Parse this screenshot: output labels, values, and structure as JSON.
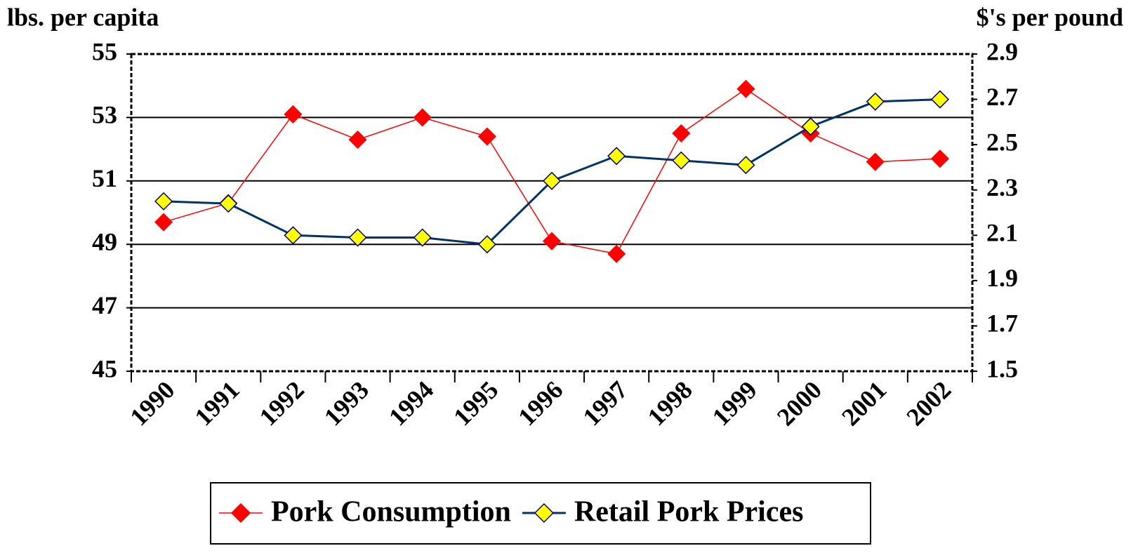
{
  "chart_data": {
    "type": "line",
    "y_label": "lbs. per capita",
    "y2_label": "$'s per pound",
    "categories": [
      "1990",
      "1991",
      "1992",
      "1993",
      "1994",
      "1995",
      "1996",
      "1997",
      "1998",
      "1999",
      "2000",
      "2001",
      "2002"
    ],
    "series": [
      {
        "name": "Pork Consumption",
        "color": "#ff0000",
        "marker_color": "#ff0000",
        "axis": "y",
        "values": [
          49.7,
          50.3,
          53.1,
          52.3,
          53.0,
          52.4,
          49.1,
          48.7,
          52.5,
          53.9,
          52.5,
          51.6,
          51.7
        ]
      },
      {
        "name": "Retail Pork Prices",
        "color": "#003366",
        "marker_color": "#ffff00",
        "axis": "y2",
        "values": [
          2.25,
          2.24,
          2.1,
          2.09,
          2.09,
          2.06,
          2.34,
          2.45,
          2.43,
          2.41,
          2.58,
          2.69,
          2.7
        ]
      }
    ],
    "ylim": [
      45,
      55
    ],
    "yticks": [
      45,
      47,
      49,
      51,
      53,
      55
    ],
    "y2lim": [
      1.5,
      2.9
    ],
    "y2ticks": [
      1.5,
      1.7,
      1.9,
      2.1,
      2.3,
      2.5,
      2.7,
      2.9
    ],
    "grid": true,
    "legend": "bottom"
  }
}
